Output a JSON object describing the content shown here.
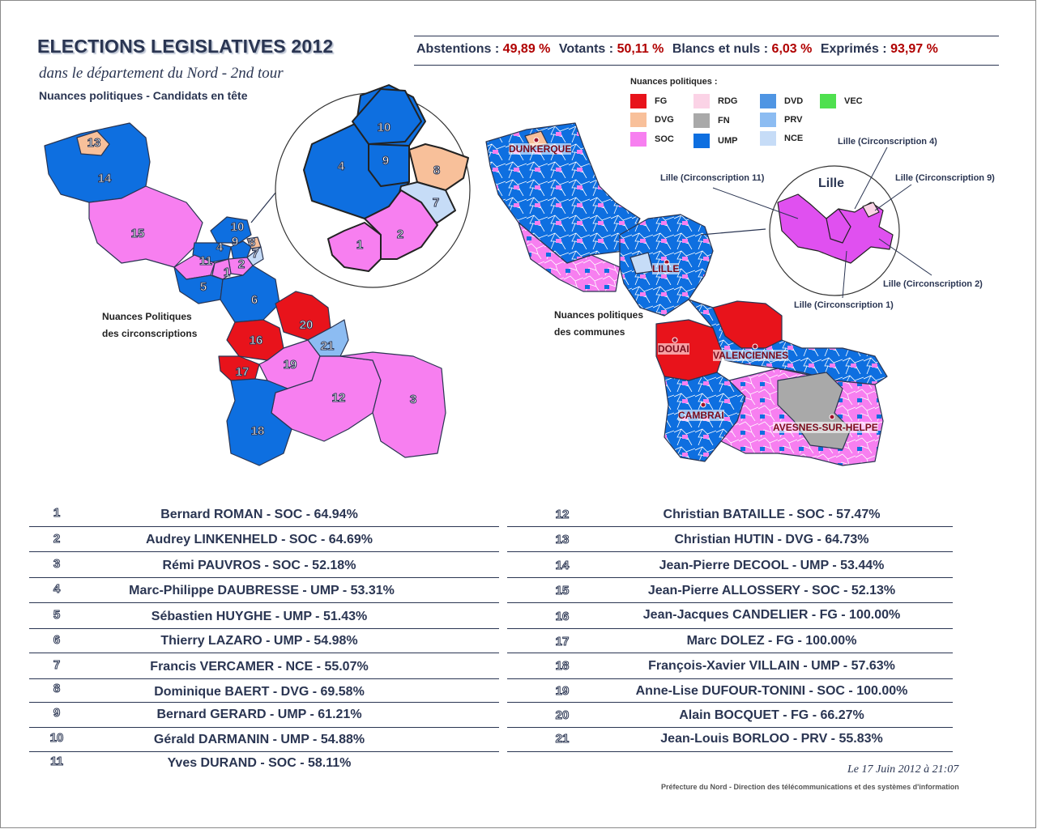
{
  "header": {
    "title": "ELECTIONS LEGISLATIVES 2012",
    "subtitle": "dans le département du Nord - 2nd tour",
    "subtitle2": "Nuances politiques -  Candidats en tête"
  },
  "stats": [
    {
      "label": "Abstentions :",
      "value": "49,89 %"
    },
    {
      "label": "Votants :",
      "value": "50,11 %"
    },
    {
      "label": "Blancs et nuls :",
      "value": "6,03 %"
    },
    {
      "label": "Exprimés :",
      "value": "93,97 %"
    }
  ],
  "legend": {
    "title": "Nuances politiques :",
    "items": [
      {
        "code": "FG",
        "color": "#e8131b"
      },
      {
        "code": "DVG",
        "color": "#f8c09a"
      },
      {
        "code": "SOC",
        "color": "#f77ff0"
      },
      {
        "code": "RDG",
        "color": "#fbd3e6"
      },
      {
        "code": "FN",
        "color": "#a9a9a9"
      },
      {
        "code": "UMP",
        "color": "#0e6fe0"
      },
      {
        "code": "DVD",
        "color": "#4f95e3"
      },
      {
        "code": "PRV",
        "color": "#8cbcf2"
      },
      {
        "code": "NCE",
        "color": "#c6dcf7"
      },
      {
        "code": "VEC",
        "color": "#4fe04f"
      }
    ]
  },
  "left_map": {
    "caption_line1": "Nuances Politiques",
    "caption_line2": "des circonscriptions",
    "labels": [
      "13",
      "14",
      "15",
      "10",
      "9",
      "8",
      "7",
      "4",
      "11",
      "2",
      "1",
      "5",
      "6",
      "20",
      "16",
      "21",
      "17",
      "19",
      "12",
      "3",
      "18"
    ],
    "inset_labels": [
      "10",
      "4",
      "9",
      "8",
      "7",
      "1",
      "2"
    ]
  },
  "right_map": {
    "caption_line1": "Nuances politiques",
    "caption_line2": "des communes",
    "cities": [
      "DUNKERQUE",
      "LILLE",
      "DOUAI",
      "VALENCIENNES",
      "CAMBRAI",
      "AVESNES-SUR-HELPE"
    ],
    "inset_title": "Lille",
    "annotations": [
      "Lille (Circonscription 4)",
      "Lille (Circonscription 11)",
      "Lille (Circonscription 9)",
      "Lille (Circonscription 2)",
      "Lille (Circonscription 1)"
    ]
  },
  "candidates_left": [
    {
      "num": "1",
      "text": "Bernard ROMAN - SOC - 64.94%"
    },
    {
      "num": "2",
      "text": "Audrey LINKENHELD - SOC - 64.69%"
    },
    {
      "num": "3",
      "text": "Rémi PAUVROS - SOC - 52.18%"
    },
    {
      "num": "4",
      "text": "Marc-Philippe DAUBRESSE - UMP - 53.31%"
    },
    {
      "num": "5",
      "text": "Sébastien HUYGHE - UMP - 51.43%"
    },
    {
      "num": "6",
      "text": "Thierry LAZARO - UMP - 54.98%"
    },
    {
      "num": "7",
      "text": "Francis VERCAMER - NCE - 55.07%"
    },
    {
      "num": "8",
      "text": "Dominique BAERT - DVG - 69.58%"
    },
    {
      "num": "9",
      "text": "Bernard GERARD - UMP - 61.21%"
    },
    {
      "num": "10",
      "text": "Gérald DARMANIN - UMP - 54.88%"
    },
    {
      "num": "11",
      "text": "Yves DURAND - SOC - 58.11%"
    }
  ],
  "candidates_right": [
    {
      "num": "12",
      "text": "Christian BATAILLE - SOC - 57.47%"
    },
    {
      "num": "13",
      "text": "Christian HUTIN - DVG - 64.73%"
    },
    {
      "num": "14",
      "text": "Jean-Pierre DECOOL - UMP - 53.44%"
    },
    {
      "num": "15",
      "text": "Jean-Pierre ALLOSSERY - SOC - 52.13%"
    },
    {
      "num": "16",
      "text": "Jean-Jacques CANDELIER - FG - 100.00%"
    },
    {
      "num": "17",
      "text": "Marc DOLEZ - FG - 100.00%"
    },
    {
      "num": "18",
      "text": "François-Xavier VILLAIN - UMP - 57.63%"
    },
    {
      "num": "19",
      "text": "Anne-Lise DUFOUR-TONINI - SOC - 100.00%"
    },
    {
      "num": "20",
      "text": "Alain BOCQUET - FG - 66.27%"
    },
    {
      "num": "21",
      "text": "Jean-Louis BORLOO - PRV - 55.83%"
    }
  ],
  "footer": {
    "date": "Le 17 Juin 2012 à 21:07",
    "source": "Préfecture du Nord - Direction des télécommunications et des systèmes d'information"
  }
}
